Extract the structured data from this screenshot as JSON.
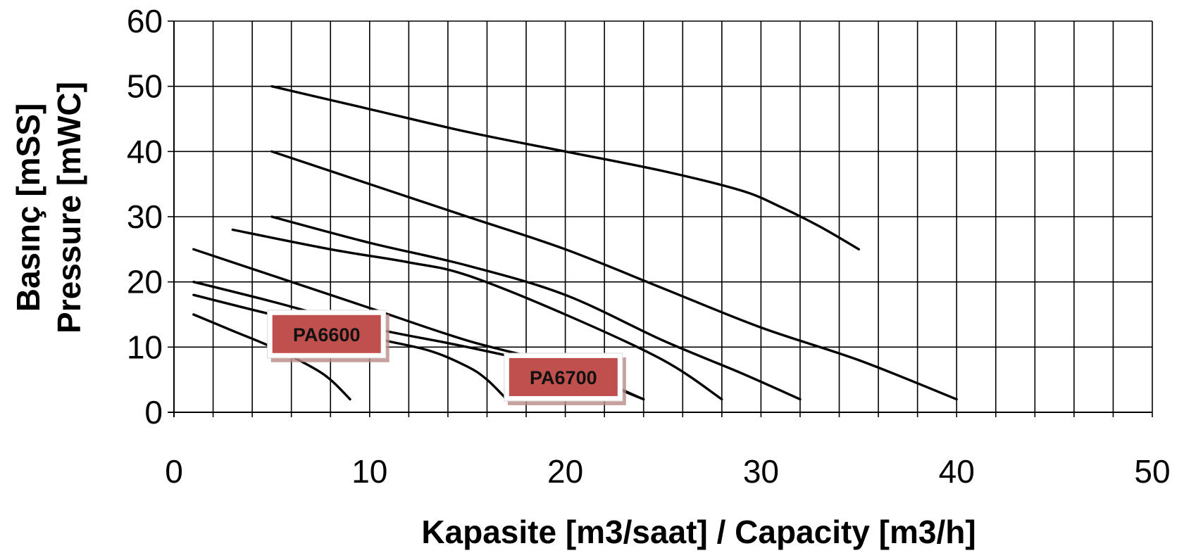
{
  "chart_data": {
    "type": "line",
    "title": "",
    "xlabel": "Kapasite [m3/saat] / Capacity [m3/h]",
    "ylabel_line1": "Basınç [mSS]",
    "ylabel_line2": "Pressure [mWC]",
    "xlim": [
      0,
      50
    ],
    "ylim": [
      0,
      60
    ],
    "x_ticks": [
      "0",
      "10",
      "20",
      "30",
      "40",
      "50"
    ],
    "y_ticks": [
      "0",
      "10",
      "20",
      "30",
      "40",
      "50",
      "60"
    ],
    "x_minor_step": 2,
    "y_major_step": 10,
    "grid": true,
    "legend": "none",
    "colors": {
      "line": "#000000",
      "label_fill": "#c0504d",
      "label_border": "#ffffff",
      "label_shadow": "#b98a86"
    },
    "series": [
      {
        "values": [
          [
            1,
            15
          ],
          [
            3,
            12.5
          ],
          [
            5,
            10
          ],
          [
            7,
            7
          ],
          [
            8,
            5
          ],
          [
            9,
            2
          ]
        ]
      },
      {
        "values": [
          [
            1,
            18
          ],
          [
            5,
            15
          ],
          [
            10,
            11.5
          ],
          [
            13,
            9.5
          ],
          [
            15,
            7
          ],
          [
            16,
            5
          ],
          [
            17,
            2
          ]
        ]
      },
      {
        "values": [
          [
            1,
            20
          ],
          [
            5,
            17
          ],
          [
            10,
            13
          ],
          [
            15,
            10
          ],
          [
            20,
            6.5
          ],
          [
            24,
            2
          ]
        ]
      },
      {
        "values": [
          [
            1,
            25
          ],
          [
            5,
            21
          ],
          [
            10,
            16
          ],
          [
            15,
            11
          ],
          [
            20,
            7
          ],
          [
            24,
            2
          ]
        ]
      },
      {
        "values": [
          [
            3,
            28
          ],
          [
            8,
            25
          ],
          [
            12,
            23
          ],
          [
            15,
            21
          ],
          [
            20,
            15
          ],
          [
            25,
            8
          ],
          [
            28,
            2
          ]
        ]
      },
      {
        "values": [
          [
            5,
            30
          ],
          [
            10,
            26
          ],
          [
            15,
            22.5
          ],
          [
            20,
            18
          ],
          [
            25,
            11
          ],
          [
            29,
            6
          ],
          [
            32,
            2
          ]
        ]
      },
      {
        "values": [
          [
            5,
            40
          ],
          [
            10,
            35
          ],
          [
            15,
            30
          ],
          [
            20,
            25
          ],
          [
            25,
            19
          ],
          [
            30,
            13
          ],
          [
            35,
            8
          ],
          [
            40,
            2
          ]
        ]
      },
      {
        "values": [
          [
            5,
            50
          ],
          [
            10,
            46.5
          ],
          [
            15,
            43
          ],
          [
            20,
            40
          ],
          [
            25,
            37
          ],
          [
            29,
            34
          ],
          [
            31,
            31.5
          ],
          [
            33,
            28.5
          ],
          [
            35,
            25
          ]
        ]
      }
    ],
    "annotations": [
      {
        "text": "PA6600",
        "x": 7.8,
        "y": 12.0
      },
      {
        "text": "PA6700",
        "x": 19.9,
        "y": 5.4
      }
    ]
  }
}
